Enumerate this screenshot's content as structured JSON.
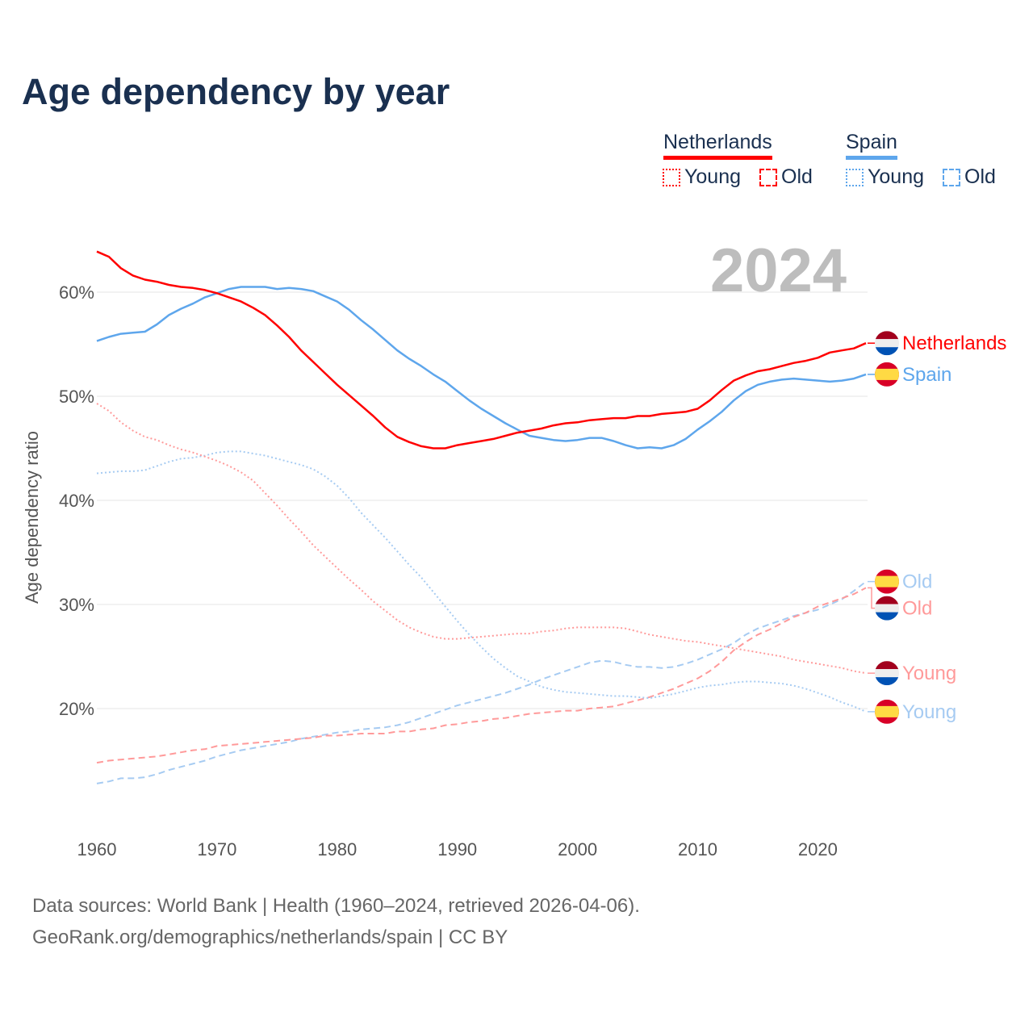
{
  "title": "Age dependency by year",
  "year_badge": "2024",
  "legend": {
    "groups": [
      {
        "country": "Netherlands",
        "color": "#ff0000",
        "light": "#ff9a9a",
        "young": "Young",
        "old": "Old"
      },
      {
        "country": "Spain",
        "color": "#5ea6ec",
        "light": "#a6cbf2",
        "young": "Young",
        "old": "Old"
      }
    ]
  },
  "footer": {
    "line1": "Data sources: World Bank | Health (1960–2024, retrieved 2026-04-06).",
    "line2": "GeoRank.org/demographics/netherlands/spain | CC BY"
  },
  "chart_data": {
    "type": "line",
    "title": "Age dependency by year",
    "xlabel": "",
    "ylabel": "Age dependency ratio",
    "xlim": [
      1960,
      2024
    ],
    "ylim": [
      10,
      65
    ],
    "x_ticks": [
      "1960",
      "1970",
      "1980",
      "1990",
      "2000",
      "2010",
      "2020"
    ],
    "y_ticks": [
      {
        "v": 20,
        "label": "20%"
      },
      {
        "v": 30,
        "label": "30%"
      },
      {
        "v": 40,
        "label": "40%"
      },
      {
        "v": 50,
        "label": "50%"
      },
      {
        "v": 60,
        "label": "60%"
      }
    ],
    "x_start": 1960,
    "series": [
      {
        "name": "Netherlands",
        "end_label": "Netherlands",
        "flag": "nl",
        "style": "solid",
        "color": "#ff0000",
        "values": [
          63.9,
          63.4,
          62.3,
          61.6,
          61.2,
          61.0,
          60.7,
          60.5,
          60.4,
          60.2,
          59.9,
          59.5,
          59.1,
          58.5,
          57.8,
          56.8,
          55.7,
          54.4,
          53.3,
          52.2,
          51.1,
          50.1,
          49.1,
          48.1,
          47.0,
          46.1,
          45.6,
          45.2,
          45.0,
          45.0,
          45.3,
          45.5,
          45.7,
          45.9,
          46.2,
          46.5,
          46.7,
          46.9,
          47.2,
          47.4,
          47.5,
          47.7,
          47.8,
          47.9,
          47.9,
          48.1,
          48.1,
          48.3,
          48.4,
          48.5,
          48.8,
          49.6,
          50.6,
          51.5,
          52.0,
          52.4,
          52.6,
          52.9,
          53.2,
          53.4,
          53.7,
          54.2,
          54.4,
          54.6,
          55.1
        ]
      },
      {
        "name": "Spain",
        "end_label": "Spain",
        "flag": "es",
        "style": "solid",
        "color": "#5ea6ec",
        "values": [
          55.3,
          55.7,
          56.0,
          56.1,
          56.2,
          56.9,
          57.8,
          58.4,
          58.9,
          59.5,
          59.9,
          60.3,
          60.5,
          60.5,
          60.5,
          60.3,
          60.4,
          60.3,
          60.1,
          59.6,
          59.1,
          58.3,
          57.3,
          56.4,
          55.4,
          54.4,
          53.6,
          52.9,
          52.1,
          51.4,
          50.5,
          49.6,
          48.8,
          48.1,
          47.4,
          46.8,
          46.2,
          46.0,
          45.8,
          45.7,
          45.8,
          46.0,
          46.0,
          45.7,
          45.3,
          45.0,
          45.1,
          45.0,
          45.3,
          45.9,
          46.8,
          47.6,
          48.5,
          49.6,
          50.5,
          51.1,
          51.4,
          51.6,
          51.7,
          51.6,
          51.5,
          51.4,
          51.5,
          51.7,
          52.1
        ]
      },
      {
        "name": "Netherlands Young",
        "end_label": "Young",
        "flag": "nl",
        "style": "dotted",
        "color": "#ff9a9a",
        "values": [
          49.3,
          48.6,
          47.5,
          46.7,
          46.1,
          45.8,
          45.3,
          44.9,
          44.6,
          44.2,
          43.8,
          43.3,
          42.7,
          41.9,
          40.7,
          39.5,
          38.2,
          37.0,
          35.7,
          34.6,
          33.5,
          32.4,
          31.4,
          30.3,
          29.4,
          28.5,
          27.8,
          27.3,
          26.9,
          26.7,
          26.7,
          26.8,
          26.9,
          27.0,
          27.1,
          27.2,
          27.2,
          27.4,
          27.5,
          27.7,
          27.8,
          27.8,
          27.8,
          27.8,
          27.7,
          27.4,
          27.1,
          26.9,
          26.7,
          26.5,
          26.4,
          26.2,
          26.0,
          25.8,
          25.6,
          25.4,
          25.2,
          25.0,
          24.7,
          24.5,
          24.3,
          24.1,
          23.9,
          23.6,
          23.4
        ]
      },
      {
        "name": "Spain Young",
        "end_label": "Young",
        "flag": "es",
        "style": "dotted",
        "color": "#a6cbf2",
        "values": [
          42.6,
          42.7,
          42.8,
          42.8,
          42.9,
          43.3,
          43.7,
          44.0,
          44.1,
          44.3,
          44.6,
          44.7,
          44.7,
          44.5,
          44.3,
          44.0,
          43.7,
          43.4,
          43.0,
          42.3,
          41.4,
          40.2,
          38.8,
          37.6,
          36.4,
          35.1,
          33.8,
          32.6,
          31.2,
          29.8,
          28.4,
          27.1,
          25.9,
          24.8,
          23.9,
          23.1,
          22.6,
          22.1,
          21.8,
          21.6,
          21.5,
          21.4,
          21.3,
          21.2,
          21.2,
          21.1,
          21.0,
          21.2,
          21.4,
          21.7,
          22.0,
          22.2,
          22.3,
          22.5,
          22.6,
          22.6,
          22.5,
          22.4,
          22.2,
          21.9,
          21.5,
          21.1,
          20.6,
          20.2,
          19.7
        ]
      },
      {
        "name": "Netherlands Old",
        "end_label": "Old",
        "flag": "nl",
        "style": "dashed",
        "color": "#ff9a9a",
        "values": [
          14.8,
          15.0,
          15.1,
          15.2,
          15.3,
          15.4,
          15.6,
          15.8,
          16.0,
          16.1,
          16.4,
          16.5,
          16.6,
          16.7,
          16.8,
          16.9,
          17.0,
          17.1,
          17.2,
          17.4,
          17.4,
          17.5,
          17.6,
          17.6,
          17.6,
          17.8,
          17.8,
          18.0,
          18.1,
          18.4,
          18.5,
          18.7,
          18.8,
          19.0,
          19.1,
          19.3,
          19.5,
          19.6,
          19.7,
          19.8,
          19.8,
          20.0,
          20.1,
          20.2,
          20.5,
          20.8,
          21.1,
          21.5,
          21.9,
          22.4,
          22.9,
          23.6,
          24.5,
          25.6,
          26.4,
          27.1,
          27.6,
          28.2,
          28.8,
          29.2,
          29.8,
          30.2,
          30.6,
          31.0,
          31.6
        ]
      },
      {
        "name": "Spain Old",
        "end_label": "Old",
        "flag": "es",
        "style": "dashed",
        "color": "#a6cbf2",
        "values": [
          12.8,
          13.0,
          13.3,
          13.3,
          13.4,
          13.7,
          14.1,
          14.4,
          14.7,
          15.0,
          15.4,
          15.7,
          16.0,
          16.2,
          16.4,
          16.6,
          16.8,
          17.1,
          17.3,
          17.5,
          17.7,
          17.8,
          18.0,
          18.1,
          18.2,
          18.4,
          18.7,
          19.1,
          19.5,
          19.9,
          20.3,
          20.6,
          20.9,
          21.2,
          21.5,
          21.9,
          22.3,
          22.8,
          23.2,
          23.6,
          24.0,
          24.4,
          24.6,
          24.5,
          24.2,
          24.0,
          24.0,
          23.9,
          24.0,
          24.3,
          24.7,
          25.2,
          25.7,
          26.3,
          27.1,
          27.7,
          28.1,
          28.5,
          28.9,
          29.2,
          29.5,
          30.0,
          30.5,
          31.3,
          32.2
        ]
      }
    ]
  }
}
